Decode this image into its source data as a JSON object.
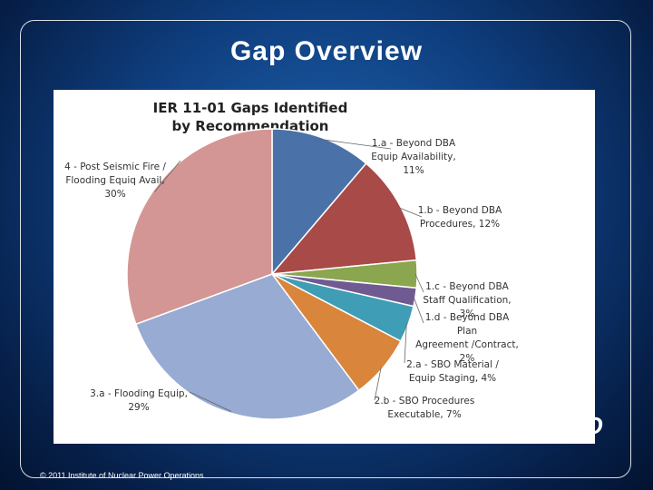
{
  "slide": {
    "title": "Gap Overview",
    "footer": "© 2011 Institute of Nuclear Power Operations",
    "logo_text": "INPO"
  },
  "chart_data": {
    "type": "pie",
    "title": "IER 11-01 Gaps Identified by Recommendation",
    "title_lines": [
      "IER 11-01 Gaps Identified",
      "by Recommendation"
    ],
    "slices": [
      {
        "label": "1.a - Beyond DBA Equip Availability",
        "value": 11,
        "color": "#4a72a8",
        "label_lines": [
          "1.a - Beyond DBA",
          "Equip Availability,",
          "11%"
        ]
      },
      {
        "label": "1.b - Beyond DBA Procedures",
        "value": 12,
        "color": "#a84a47",
        "label_lines": [
          "1.b - Beyond DBA",
          "Procedures,  12%"
        ]
      },
      {
        "label": "1.c - Beyond DBA Staff Qualification",
        "value": 3,
        "color": "#8aa64e",
        "label_lines": [
          "1.c - Beyond DBA",
          "Staff Qualification,",
          "3%"
        ]
      },
      {
        "label": "1.d - Beyond DBA Plan Agreement /Contract",
        "value": 2,
        "color": "#6f5a92",
        "label_lines": [
          "1.d - Beyond DBA",
          "Plan",
          "Agreement /Contract,",
          "2%"
        ]
      },
      {
        "label": "2.a - SBO Material / Equip Staging",
        "value": 4,
        "color": "#3f9db5",
        "label_lines": [
          "2.a - SBO Material /",
          "Equip Staging,  4%"
        ]
      },
      {
        "label": "2.b - SBO Procedures Executable",
        "value": 7,
        "color": "#d9853b",
        "label_lines": [
          "2.b - SBO Procedures",
          "Executable,  7%"
        ]
      },
      {
        "label": "3.a - Flooding Equip",
        "value": 29,
        "color": "#97abd3",
        "label_lines": [
          "3.a - Flooding Equip,",
          "29%"
        ]
      },
      {
        "label": "4 - Post Seismic Fire / Flooding Equiq Avail",
        "value": 30,
        "color": "#d39694",
        "label_lines": [
          "4 - Post Seismic Fire /",
          "Flooding Equiq Avail,",
          "30%"
        ]
      }
    ]
  }
}
